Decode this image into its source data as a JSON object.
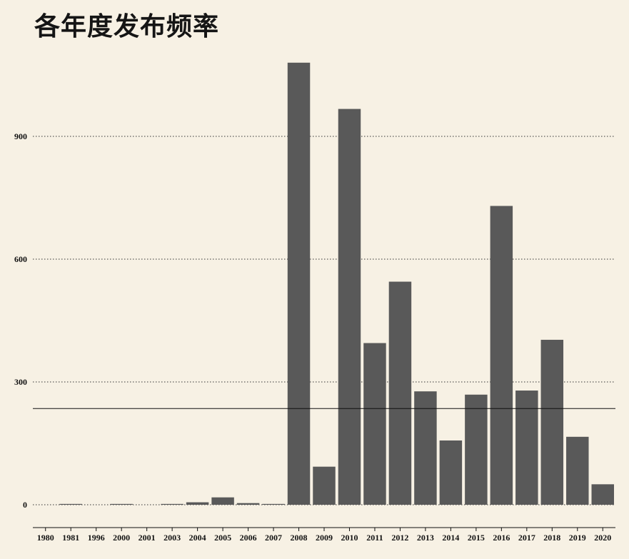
{
  "colors": {
    "background": "#f7f1e4",
    "bar": "#595959",
    "grid": "#333333",
    "mean_line": "#111111"
  },
  "chart_data": {
    "type": "bar",
    "title": "各年度发布频率",
    "xlabel": "",
    "ylabel": "",
    "categories": [
      "1980",
      "1981",
      "1996",
      "2000",
      "2001",
      "2003",
      "2004",
      "2005",
      "2006",
      "2007",
      "2008",
      "2009",
      "2010",
      "2011",
      "2012",
      "2013",
      "2014",
      "2015",
      "2016",
      "2017",
      "2018",
      "2019",
      "2020"
    ],
    "values": [
      0,
      2,
      0,
      2,
      0,
      2,
      6,
      18,
      4,
      2,
      1080,
      93,
      967,
      395,
      545,
      277,
      157,
      269,
      730,
      279,
      403,
      166,
      50
    ],
    "yticks": [
      0,
      300,
      600,
      900
    ],
    "ylim": [
      0,
      1080
    ],
    "grid": "horizontal dotted",
    "reference_line": 235
  }
}
